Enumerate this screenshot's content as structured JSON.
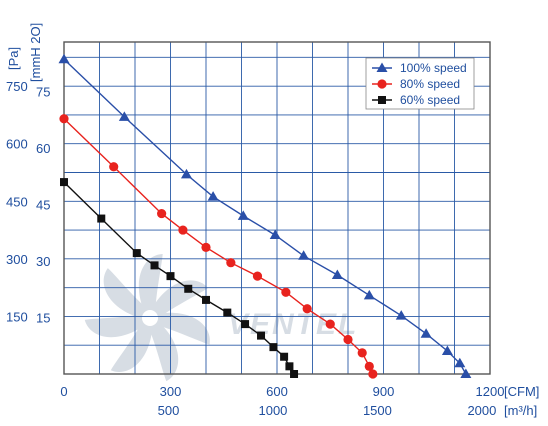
{
  "chart_data": {
    "type": "line",
    "title": "",
    "colors": {
      "grid": "#2a5aa6",
      "text": "#1f4e9e",
      "plot_border": "#555555",
      "watermark": "#d7dde4"
    },
    "y_units": {
      "primary": "[Pa]",
      "secondary": "[mmH 2O]"
    },
    "x_units": {
      "primary": "[CFM]",
      "secondary": "[m³/h]"
    },
    "xlim": [
      0,
      1200
    ],
    "ylim": [
      0,
      865
    ],
    "x_ticks": [
      {
        "value": 0,
        "label": "0"
      },
      {
        "value": 300,
        "label": "300"
      },
      {
        "value": 600,
        "label": "600"
      },
      {
        "value": 900,
        "label": "900"
      },
      {
        "value": 1200,
        "label": "1200"
      }
    ],
    "x_ticks_secondary": [
      {
        "value": 294.3,
        "label": "500"
      },
      {
        "value": 588.6,
        "label": "1000"
      },
      {
        "value": 882.9,
        "label": "1500"
      },
      {
        "value": 1177.2,
        "label": "2000"
      }
    ],
    "y_ticks": [
      {
        "value": 150,
        "label": "150"
      },
      {
        "value": 300,
        "label": "300"
      },
      {
        "value": 450,
        "label": "450"
      },
      {
        "value": 600,
        "label": "600"
      },
      {
        "value": 750,
        "label": "750"
      }
    ],
    "y_ticks_secondary": [
      {
        "value": 147.1,
        "label": "15"
      },
      {
        "value": 294.2,
        "label": "30"
      },
      {
        "value": 441.3,
        "label": "45"
      },
      {
        "value": 588.4,
        "label": "60"
      },
      {
        "value": 735.5,
        "label": "75"
      }
    ],
    "x_grid_step": 100,
    "y_grid_step": 75,
    "legend_position": "top-right",
    "watermark_text": "VENTEL",
    "series": [
      {
        "name": "100%  speed",
        "color": "#2a4fa8",
        "marker": "triangle",
        "points": [
          [
            0,
            820
          ],
          [
            170,
            670
          ],
          [
            345,
            520
          ],
          [
            420,
            462
          ],
          [
            505,
            412
          ],
          [
            595,
            362
          ],
          [
            675,
            308
          ],
          [
            770,
            258
          ],
          [
            860,
            205
          ],
          [
            950,
            152
          ],
          [
            1020,
            105
          ],
          [
            1080,
            60
          ],
          [
            1115,
            28
          ],
          [
            1132,
            0
          ]
        ]
      },
      {
        "name": "80%  speed",
        "color": "#e8231e",
        "marker": "circle",
        "points": [
          [
            0,
            665
          ],
          [
            140,
            540
          ],
          [
            275,
            418
          ],
          [
            335,
            375
          ],
          [
            400,
            330
          ],
          [
            470,
            290
          ],
          [
            545,
            255
          ],
          [
            625,
            213
          ],
          [
            685,
            170
          ],
          [
            750,
            130
          ],
          [
            800,
            90
          ],
          [
            840,
            55
          ],
          [
            860,
            20
          ],
          [
            870,
            0
          ]
        ]
      },
      {
        "name": "60%  speed",
        "color": "#111111",
        "marker": "square",
        "points": [
          [
            0,
            500
          ],
          [
            105,
            405
          ],
          [
            205,
            315
          ],
          [
            255,
            283
          ],
          [
            300,
            255
          ],
          [
            350,
            222
          ],
          [
            400,
            193
          ],
          [
            460,
            160
          ],
          [
            510,
            130
          ],
          [
            555,
            100
          ],
          [
            590,
            70
          ],
          [
            620,
            45
          ],
          [
            635,
            20
          ],
          [
            648,
            0
          ]
        ]
      }
    ]
  }
}
